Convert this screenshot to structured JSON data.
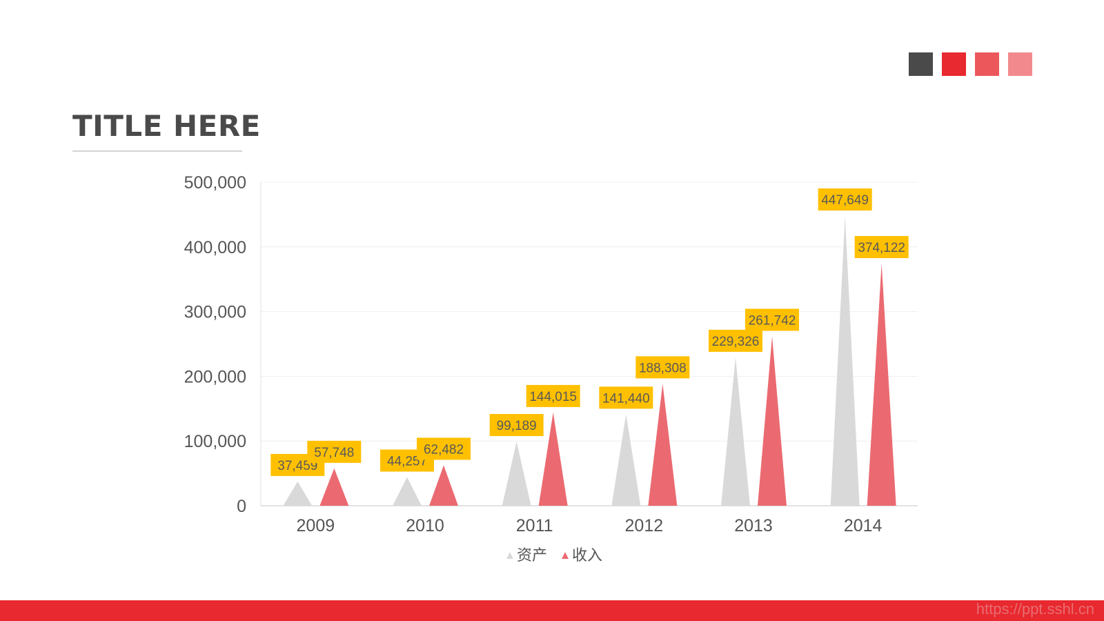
{
  "slide": {
    "title": "TITLE HERE",
    "watermark": "https://ppt.sshl.cn",
    "palette": [
      "#4a4a4a",
      "#e8292f",
      "#ec575c",
      "#f28a8d"
    ],
    "footer_color": "#e8292f"
  },
  "chart_data": {
    "type": "bar",
    "shape": "triangle",
    "categories": [
      "2009",
      "2010",
      "2011",
      "2012",
      "2013",
      "2014"
    ],
    "series": [
      {
        "name": "资产",
        "color": "#d9d9d9",
        "values": [
          37459,
          44257,
          99189,
          141440,
          229326,
          447649
        ]
      },
      {
        "name": "收入",
        "color": "#eb6a71",
        "values": [
          57748,
          62482,
          144015,
          188308,
          261742,
          374122
        ]
      }
    ],
    "value_labels": {
      "资产": [
        "37,459",
        "44,257",
        "99,189",
        "141,440",
        "229,326",
        "447,649"
      ],
      "收入": [
        "57,748",
        "62,482",
        "144,015",
        "188,308",
        "261,742",
        "374,122"
      ]
    },
    "label_color": "#ffc000",
    "ylim": [
      0,
      500000
    ],
    "yticks": [
      0,
      100000,
      200000,
      300000,
      400000,
      500000
    ],
    "ytick_labels": [
      "0",
      "100,000",
      "200,000",
      "300,000",
      "400,000",
      "500,000"
    ],
    "grid": true,
    "legend": "bottom"
  }
}
